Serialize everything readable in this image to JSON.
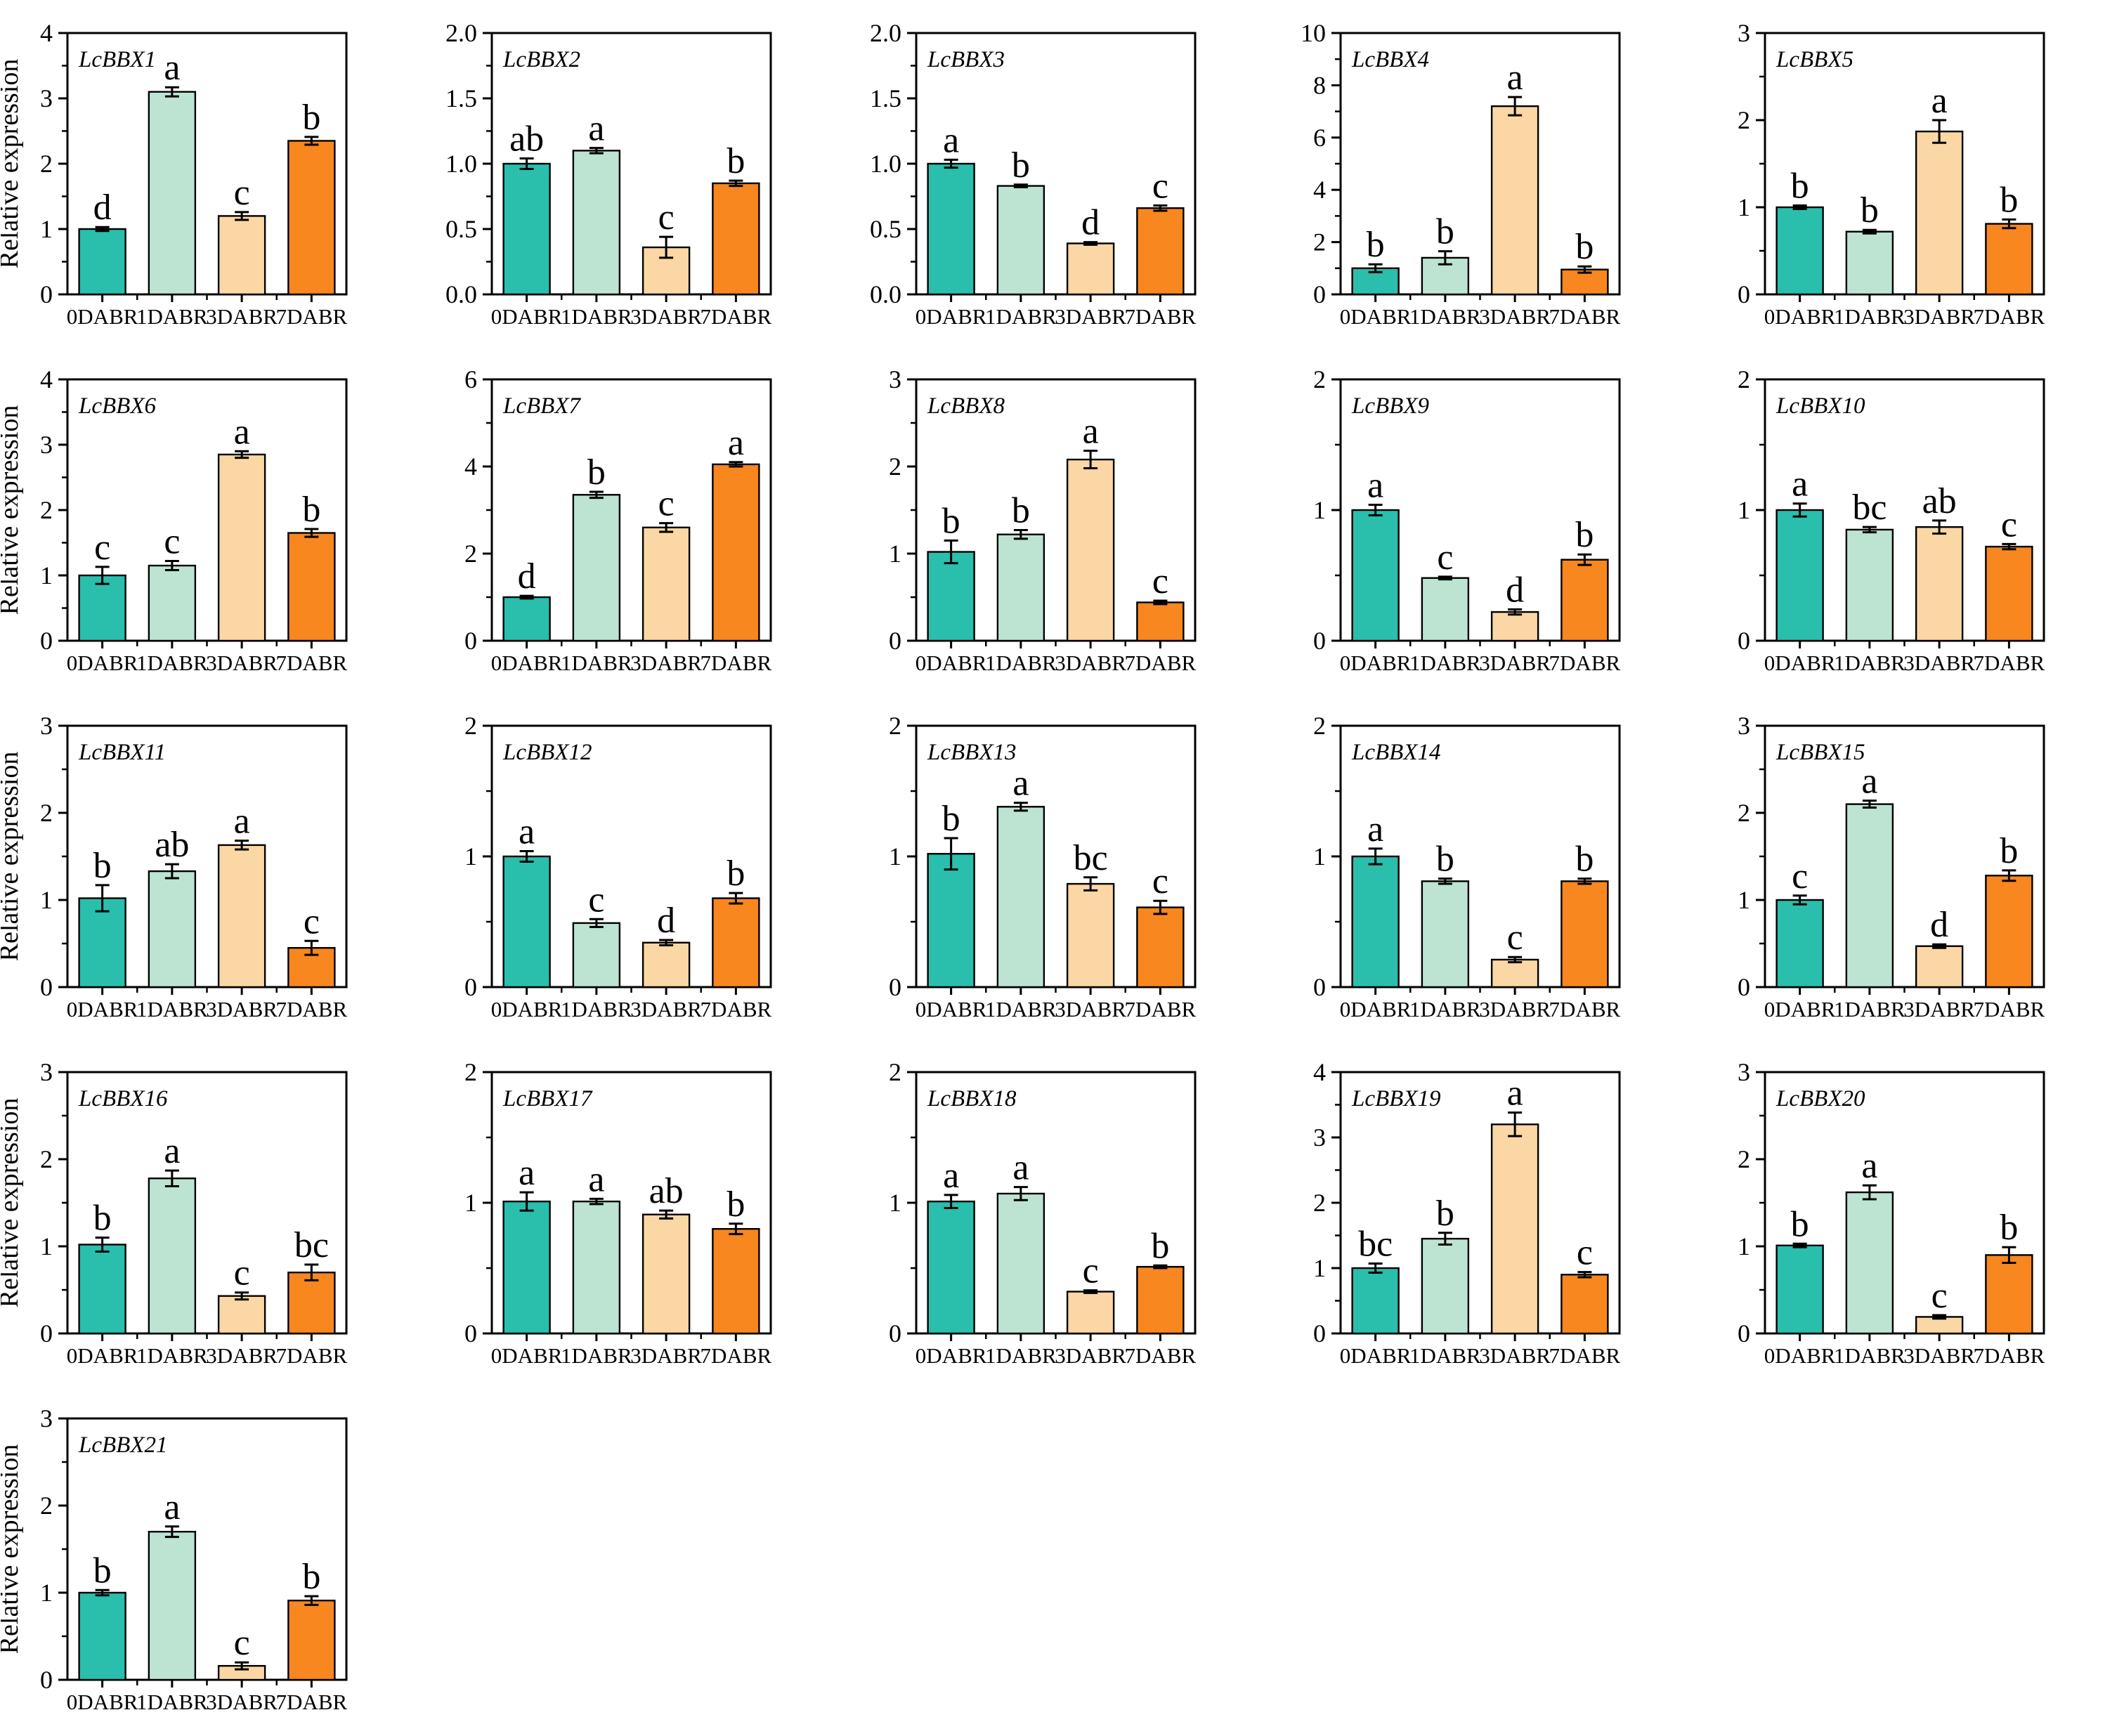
{
  "figure": {
    "background": "#ffffff",
    "rows": 5,
    "cols": 5
  },
  "colors": {
    "bar_0DABR": "#29bfac",
    "bar_1DABR": "#bde4d2",
    "bar_3DABR": "#fad7a4",
    "bar_7DABR": "#f8871f",
    "axis": "#000000",
    "text": "#000000"
  },
  "chart_data": {
    "type": "bar",
    "categories": [
      "0DABR",
      "1DABR",
      "3DABR",
      "7DABR"
    ],
    "ylabel": "Relative expression",
    "grid": false,
    "legend": "none",
    "error_bars": true,
    "panels": [
      {
        "gene": "LcBBX1",
        "ymax": 4,
        "ytick_labels": [
          "0",
          "1",
          "2",
          "3",
          "4"
        ],
        "values": [
          1.0,
          3.1,
          1.2,
          2.35
        ],
        "errors": [
          0.03,
          0.07,
          0.06,
          0.06
        ],
        "letters": [
          "d",
          "a",
          "c",
          "b"
        ]
      },
      {
        "gene": "LcBBX2",
        "ymax": 2,
        "ytick_labels": [
          "0.0",
          "0.5",
          "1.0",
          "1.5",
          "2.0"
        ],
        "values": [
          1.0,
          1.1,
          0.36,
          0.85
        ],
        "errors": [
          0.04,
          0.02,
          0.08,
          0.02
        ],
        "letters": [
          "ab",
          "a",
          "c",
          "b"
        ]
      },
      {
        "gene": "LcBBX3",
        "ymax": 2,
        "ytick_labels": [
          "0.0",
          "0.5",
          "1.0",
          "1.5",
          "2.0"
        ],
        "values": [
          1.0,
          0.83,
          0.39,
          0.66
        ],
        "errors": [
          0.03,
          0.01,
          0.01,
          0.02
        ],
        "letters": [
          "a",
          "b",
          "d",
          "c"
        ]
      },
      {
        "gene": "LcBBX4",
        "ymax": 10,
        "ytick_labels": [
          "0",
          "2",
          "4",
          "6",
          "8",
          "10"
        ],
        "values": [
          1.0,
          1.4,
          7.2,
          0.95
        ],
        "errors": [
          0.15,
          0.25,
          0.35,
          0.12
        ],
        "letters": [
          "b",
          "b",
          "a",
          "b"
        ]
      },
      {
        "gene": "LcBBX5",
        "ymax": 3,
        "ytick_labels": [
          "0",
          "1",
          "2",
          "3"
        ],
        "values": [
          1.0,
          0.72,
          1.87,
          0.81
        ],
        "errors": [
          0.02,
          0.02,
          0.13,
          0.05
        ],
        "letters": [
          "b",
          "b",
          "a",
          "b"
        ]
      },
      {
        "gene": "LcBBX6",
        "ymax": 4,
        "ytick_labels": [
          "0",
          "1",
          "2",
          "3",
          "4"
        ],
        "values": [
          1.0,
          1.15,
          2.85,
          1.65
        ],
        "errors": [
          0.13,
          0.07,
          0.05,
          0.06
        ],
        "letters": [
          "c",
          "c",
          "a",
          "b"
        ]
      },
      {
        "gene": "LcBBX7",
        "ymax": 6,
        "ytick_labels": [
          "0",
          "2",
          "4",
          "6"
        ],
        "values": [
          1.0,
          3.35,
          2.6,
          4.05
        ],
        "errors": [
          0.03,
          0.07,
          0.1,
          0.05
        ],
        "letters": [
          "d",
          "b",
          "c",
          "a"
        ]
      },
      {
        "gene": "LcBBX8",
        "ymax": 3,
        "ytick_labels": [
          "0",
          "1",
          "2",
          "3"
        ],
        "values": [
          1.02,
          1.22,
          2.08,
          0.44
        ],
        "errors": [
          0.13,
          0.05,
          0.1,
          0.02
        ],
        "letters": [
          "b",
          "b",
          "a",
          "c"
        ]
      },
      {
        "gene": "LcBBX9",
        "ymax": 2,
        "ytick_labels": [
          "0",
          "1",
          "2"
        ],
        "values": [
          1.0,
          0.48,
          0.22,
          0.62
        ],
        "errors": [
          0.04,
          0.01,
          0.02,
          0.04
        ],
        "letters": [
          "a",
          "c",
          "d",
          "b"
        ]
      },
      {
        "gene": "LcBBX10",
        "ymax": 2,
        "ytick_labels": [
          "0",
          "1",
          "2"
        ],
        "values": [
          1.0,
          0.85,
          0.87,
          0.72
        ],
        "errors": [
          0.05,
          0.02,
          0.05,
          0.02
        ],
        "letters": [
          "a",
          "bc",
          "ab",
          "c"
        ]
      },
      {
        "gene": "LcBBX11",
        "ymax": 3,
        "ytick_labels": [
          "0",
          "1",
          "2",
          "3"
        ],
        "values": [
          1.02,
          1.33,
          1.63,
          0.45
        ],
        "errors": [
          0.15,
          0.08,
          0.05,
          0.08
        ],
        "letters": [
          "b",
          "ab",
          "a",
          "c"
        ]
      },
      {
        "gene": "LcBBX12",
        "ymax": 2,
        "ytick_labels": [
          "0",
          "1",
          "2"
        ],
        "values": [
          1.0,
          0.49,
          0.34,
          0.68
        ],
        "errors": [
          0.04,
          0.03,
          0.02,
          0.04
        ],
        "letters": [
          "a",
          "c",
          "d",
          "b"
        ]
      },
      {
        "gene": "LcBBX13",
        "ymax": 2,
        "ytick_labels": [
          "0",
          "1",
          "2"
        ],
        "values": [
          1.02,
          1.38,
          0.79,
          0.61
        ],
        "errors": [
          0.12,
          0.03,
          0.05,
          0.05
        ],
        "letters": [
          "b",
          "a",
          "bc",
          "c"
        ]
      },
      {
        "gene": "LcBBX14",
        "ymax": 2,
        "ytick_labels": [
          "0",
          "1",
          "2"
        ],
        "values": [
          1.0,
          0.81,
          0.21,
          0.81
        ],
        "errors": [
          0.06,
          0.02,
          0.02,
          0.02
        ],
        "letters": [
          "a",
          "b",
          "c",
          "b"
        ]
      },
      {
        "gene": "LcBBX15",
        "ymax": 3,
        "ytick_labels": [
          "0",
          "1",
          "2",
          "3"
        ],
        "values": [
          1.0,
          2.1,
          0.47,
          1.28
        ],
        "errors": [
          0.05,
          0.04,
          0.02,
          0.06
        ],
        "letters": [
          "c",
          "a",
          "d",
          "b"
        ]
      },
      {
        "gene": "LcBBX16",
        "ymax": 3,
        "ytick_labels": [
          "0",
          "1",
          "2",
          "3"
        ],
        "values": [
          1.02,
          1.78,
          0.43,
          0.7
        ],
        "errors": [
          0.08,
          0.09,
          0.04,
          0.09
        ],
        "letters": [
          "b",
          "a",
          "c",
          "bc"
        ]
      },
      {
        "gene": "LcBBX17",
        "ymax": 2,
        "ytick_labels": [
          "0",
          "1",
          "2"
        ],
        "values": [
          1.01,
          1.01,
          0.91,
          0.8
        ],
        "errors": [
          0.07,
          0.02,
          0.03,
          0.04
        ],
        "letters": [
          "a",
          "a",
          "ab",
          "b"
        ]
      },
      {
        "gene": "LcBBX18",
        "ymax": 2,
        "ytick_labels": [
          "0",
          "1",
          "2"
        ],
        "values": [
          1.01,
          1.07,
          0.32,
          0.51
        ],
        "errors": [
          0.05,
          0.05,
          0.01,
          0.01
        ],
        "letters": [
          "a",
          "a",
          "c",
          "b"
        ]
      },
      {
        "gene": "LcBBX19",
        "ymax": 4,
        "ytick_labels": [
          "0",
          "1",
          "2",
          "3",
          "4"
        ],
        "values": [
          1.0,
          1.45,
          3.2,
          0.9
        ],
        "errors": [
          0.07,
          0.09,
          0.18,
          0.04
        ],
        "letters": [
          "bc",
          "b",
          "a",
          "c"
        ]
      },
      {
        "gene": "LcBBX20",
        "ymax": 3,
        "ytick_labels": [
          "0",
          "1",
          "2",
          "3"
        ],
        "values": [
          1.01,
          1.62,
          0.19,
          0.9
        ],
        "errors": [
          0.02,
          0.08,
          0.02,
          0.09
        ],
        "letters": [
          "b",
          "a",
          "c",
          "b"
        ]
      },
      {
        "gene": "LcBBX21",
        "ymax": 3,
        "ytick_labels": [
          "0",
          "1",
          "2",
          "3"
        ],
        "values": [
          1.0,
          1.7,
          0.16,
          0.91
        ],
        "errors": [
          0.03,
          0.06,
          0.04,
          0.05
        ],
        "letters": [
          "b",
          "a",
          "c",
          "b"
        ]
      }
    ]
  }
}
